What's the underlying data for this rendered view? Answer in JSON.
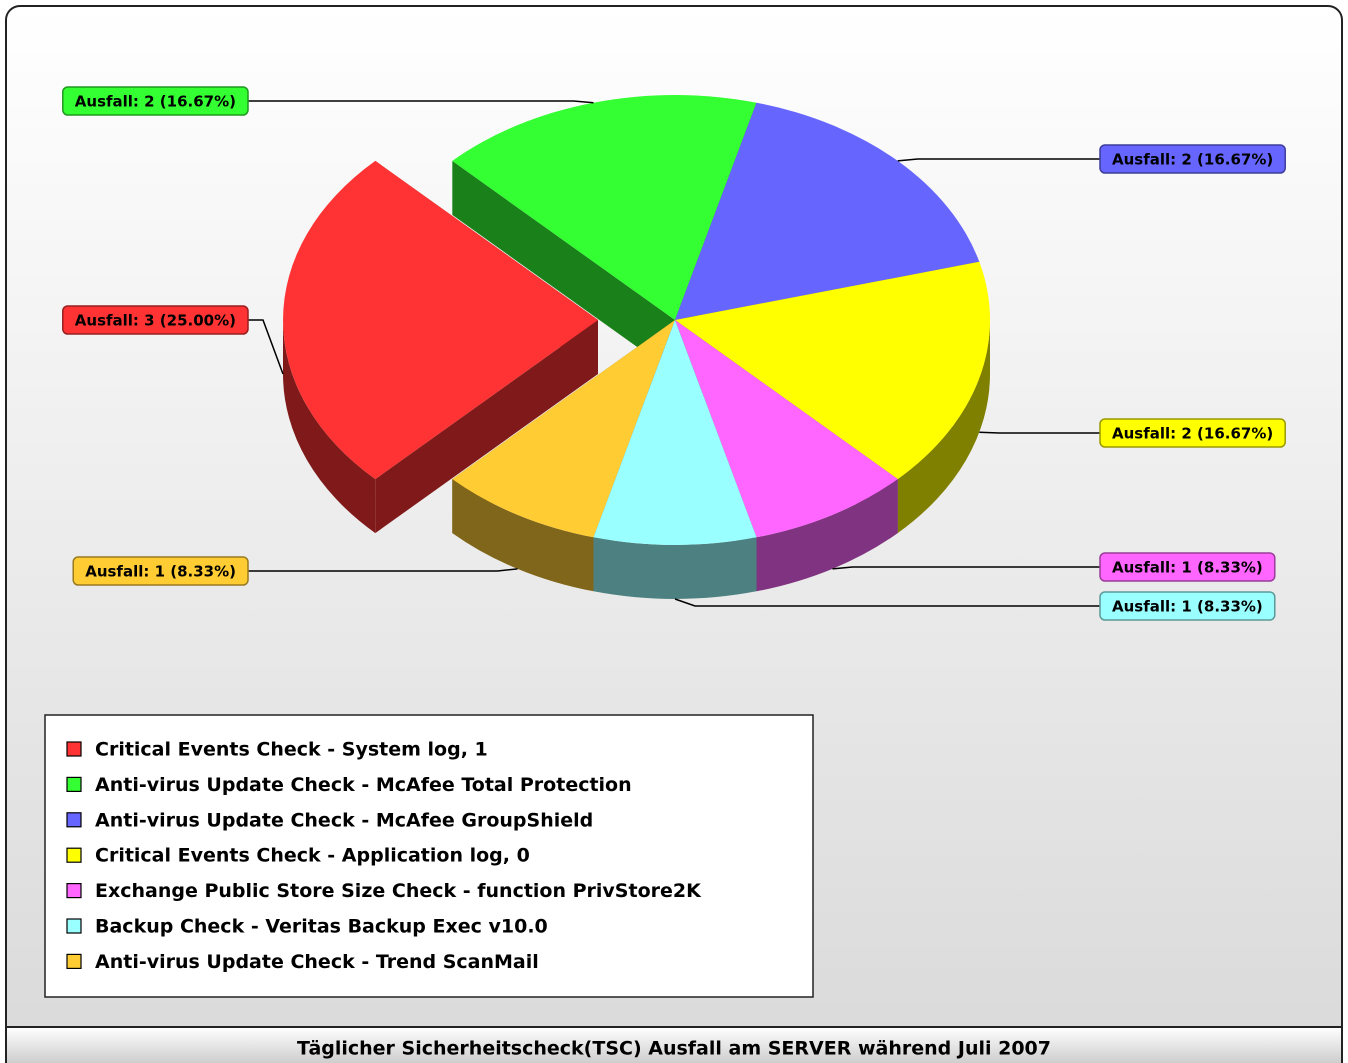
{
  "chart_data": {
    "type": "pie",
    "title": "Täglicher Sicherheitscheck(TSC) Ausfall am SERVER während Juli 2007",
    "categories": [
      "Critical Events Check - System log, 1",
      "Anti-virus Update Check - McAfee Total Protection",
      "Anti-virus Update Check - McAfee GroupShield",
      "Critical Events Check - Application log, 0",
      "Exchange Public Store Size Check - function PrivStore2K",
      "Backup Check - Veritas Backup Exec v10.0",
      "Anti-virus Update Check - Trend ScanMail"
    ],
    "values": [
      3,
      2,
      2,
      2,
      1,
      1,
      1
    ],
    "value_labels": [
      "Ausfall: 3 (25.00%)",
      "Ausfall: 2 (16.67%)",
      "Ausfall: 2 (16.67%)",
      "Ausfall: 2 (16.67%)",
      "Ausfall: 1 (8.33%)",
      "Ausfall: 1 (8.33%)",
      "Ausfall: 1 (8.33%)"
    ],
    "colors": [
      "#ff3333",
      "#33ff33",
      "#6666ff",
      "#ffff00",
      "#ff66ff",
      "#99ffff",
      "#ffcc33"
    ],
    "exploded": [
      true,
      false,
      false,
      false,
      false,
      false,
      false
    ],
    "legend": "bottom-left"
  }
}
